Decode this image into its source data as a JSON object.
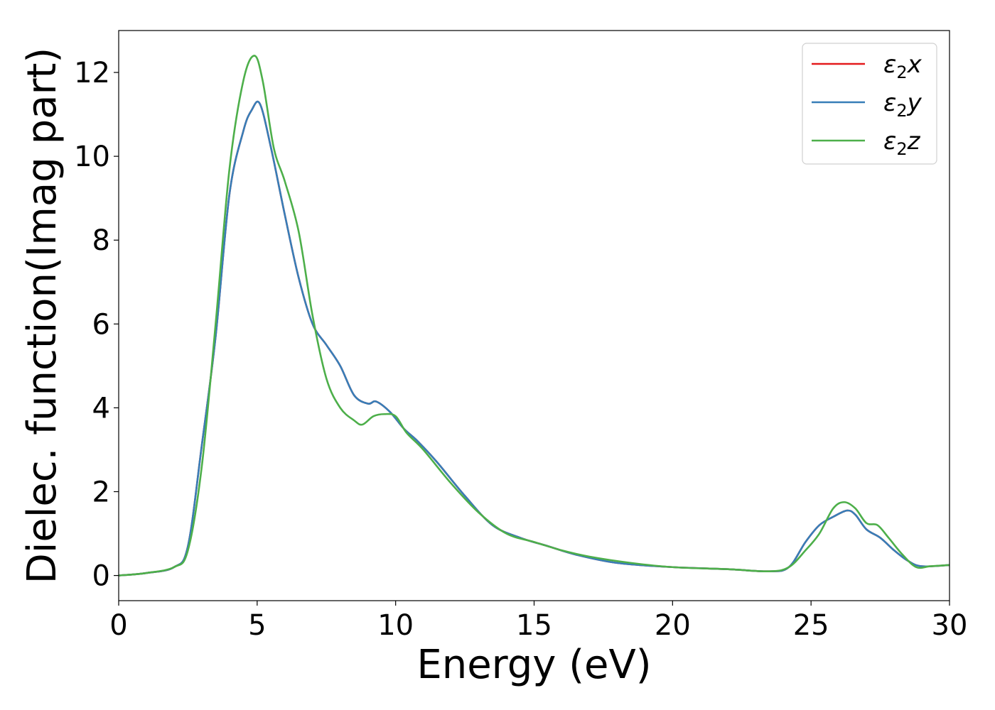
{
  "chart_data": {
    "type": "line",
    "xlabel": "Energy (eV)",
    "ylabel": "Dielec. function(Imag part)",
    "xlim": [
      0,
      30
    ],
    "ylim": [
      -0.6,
      13.0
    ],
    "xticks": [
      0,
      5,
      10,
      15,
      20,
      25,
      30
    ],
    "yticks": [
      0,
      2,
      4,
      6,
      8,
      10,
      12
    ],
    "grid": false,
    "legend_position": "top-right",
    "series": [
      {
        "name": "ε2x",
        "legend": {
          "main": "ε",
          "sub": "2",
          "var": "x"
        },
        "color": "#e41a1c",
        "x": [
          0,
          1,
          2,
          2.5,
          3,
          3.5,
          4,
          4.5,
          4.8,
          5.1,
          5.5,
          6,
          6.5,
          7,
          7.5,
          8,
          8.5,
          9,
          9.3,
          9.8,
          10.3,
          10.8,
          11.5,
          12.5,
          13.5,
          14.5,
          15.5,
          16.5,
          18,
          20,
          22,
          23.5,
          24.2,
          24.8,
          25.3,
          25.8,
          26.3,
          26.6,
          27,
          27.5,
          28,
          28.5,
          29,
          30
        ],
        "values": [
          0,
          0.06,
          0.2,
          0.7,
          3.1,
          5.7,
          9.1,
          10.6,
          11.1,
          11.25,
          10.2,
          8.6,
          7.1,
          6.0,
          5.5,
          5.0,
          4.3,
          4.1,
          4.15,
          3.9,
          3.5,
          3.2,
          2.7,
          1.9,
          1.2,
          0.9,
          0.7,
          0.5,
          0.3,
          0.2,
          0.15,
          0.1,
          0.2,
          0.8,
          1.2,
          1.4,
          1.55,
          1.45,
          1.1,
          0.9,
          0.6,
          0.35,
          0.22,
          0.25
        ]
      },
      {
        "name": "ε2y",
        "legend": {
          "main": "ε",
          "sub": "2",
          "var": "y"
        },
        "color": "#377eb8",
        "x": [
          0,
          1,
          2,
          2.5,
          3,
          3.5,
          4,
          4.5,
          4.8,
          5.1,
          5.5,
          6,
          6.5,
          7,
          7.5,
          8,
          8.5,
          9,
          9.3,
          9.8,
          10.3,
          10.8,
          11.5,
          12.5,
          13.5,
          14.5,
          15.5,
          16.5,
          18,
          20,
          22,
          23.5,
          24.2,
          24.8,
          25.3,
          25.8,
          26.3,
          26.6,
          27,
          27.5,
          28,
          28.5,
          29,
          30
        ],
        "values": [
          0,
          0.06,
          0.2,
          0.7,
          3.1,
          5.7,
          9.1,
          10.6,
          11.1,
          11.25,
          10.2,
          8.6,
          7.1,
          6.0,
          5.5,
          5.0,
          4.3,
          4.1,
          4.15,
          3.9,
          3.5,
          3.2,
          2.7,
          1.9,
          1.2,
          0.9,
          0.7,
          0.5,
          0.3,
          0.2,
          0.15,
          0.1,
          0.2,
          0.8,
          1.2,
          1.4,
          1.55,
          1.45,
          1.1,
          0.9,
          0.6,
          0.35,
          0.22,
          0.25
        ]
      },
      {
        "name": "ε2z",
        "legend": {
          "main": "ε",
          "sub": "2",
          "var": "z"
        },
        "color": "#4daf4a",
        "x": [
          0,
          1,
          2,
          2.5,
          3,
          3.5,
          4,
          4.5,
          4.9,
          5.2,
          5.6,
          6,
          6.5,
          7,
          7.5,
          8,
          8.5,
          8.8,
          9.2,
          9.6,
          10.0,
          10.4,
          11.0,
          12.0,
          13.0,
          14.0,
          15.0,
          16.0,
          17.0,
          18.5,
          20.0,
          22.0,
          23.5,
          24.2,
          24.8,
          25.3,
          25.8,
          26.2,
          26.6,
          27.0,
          27.4,
          27.8,
          28.3,
          28.8,
          29.3,
          30.0
        ],
        "values": [
          0,
          0.06,
          0.2,
          0.6,
          2.6,
          6.0,
          9.7,
          11.8,
          12.4,
          11.8,
          10.2,
          9.4,
          8.2,
          6.2,
          4.7,
          4.0,
          3.7,
          3.6,
          3.8,
          3.85,
          3.8,
          3.4,
          3.0,
          2.2,
          1.5,
          1.0,
          0.8,
          0.6,
          0.45,
          0.3,
          0.2,
          0.15,
          0.1,
          0.2,
          0.6,
          1.0,
          1.6,
          1.75,
          1.6,
          1.25,
          1.2,
          0.9,
          0.5,
          0.2,
          0.22,
          0.25
        ]
      }
    ]
  }
}
